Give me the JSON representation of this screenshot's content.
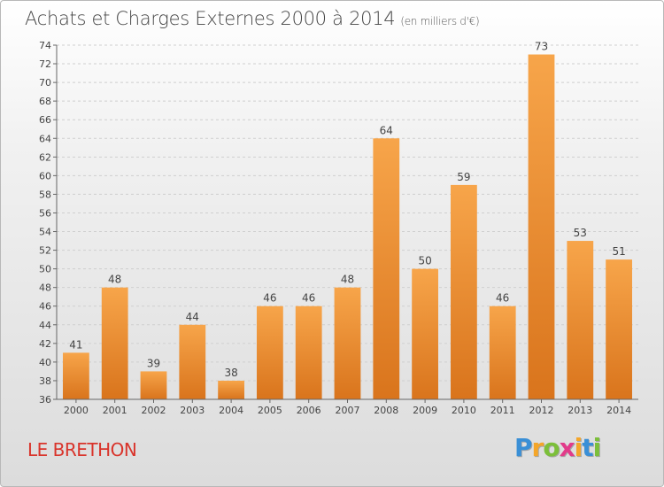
{
  "title": "Achats et Charges Externes 2000 à 2014",
  "unit_note": "(en milliers d'€)",
  "commune": "LE BRETHON",
  "logo": {
    "letters": [
      "P",
      "r",
      "o",
      "x",
      "i",
      "t",
      "i"
    ],
    "colors": [
      "#3a8fd6",
      "#f4a62a",
      "#7cbf3a",
      "#e23b8a",
      "#f4a62a",
      "#3a8fd6",
      "#7cbf3a"
    ]
  },
  "chart_data": {
    "type": "bar",
    "title": "Achats et Charges Externes 2000 à 2014",
    "subtitle": "(en milliers d'€)",
    "categories": [
      "2000",
      "2001",
      "2002",
      "2003",
      "2004",
      "2005",
      "2006",
      "2007",
      "2008",
      "2009",
      "2010",
      "2011",
      "2012",
      "2013",
      "2014"
    ],
    "values": [
      41,
      48,
      39,
      44,
      38,
      46,
      46,
      48,
      64,
      50,
      59,
      46,
      73,
      53,
      51
    ],
    "ylim": [
      36,
      74
    ],
    "yticks": [
      36,
      38,
      40,
      42,
      44,
      46,
      48,
      50,
      52,
      54,
      56,
      58,
      60,
      62,
      64,
      66,
      68,
      70,
      72,
      74
    ],
    "grid": true,
    "bar_color": "#f0922e",
    "data_labels": true
  }
}
